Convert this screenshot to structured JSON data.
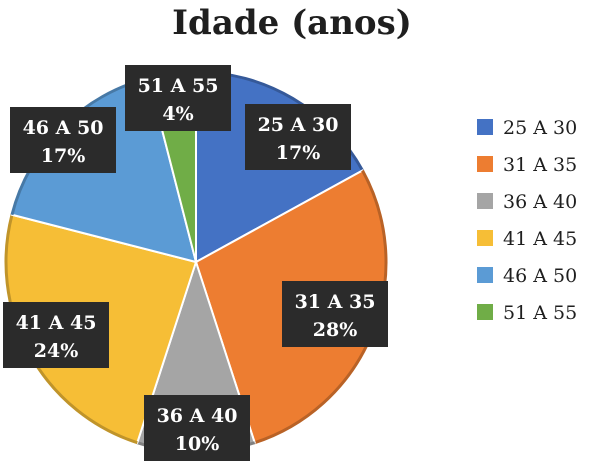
{
  "chart_data": {
    "type": "pie",
    "title": "Idade (anos)",
    "categories": [
      "25 A 30",
      "31 A 35",
      "36 A 40",
      "41 A 45",
      "46 A 50",
      "51 A 55"
    ],
    "values": [
      17,
      28,
      10,
      24,
      17,
      4
    ],
    "value_labels": [
      "17%",
      "28%",
      "10%",
      "24%",
      "17%",
      "4%"
    ],
    "colors": [
      "#4472C4",
      "#ED7D31",
      "#A5A5A5",
      "#F6BE36",
      "#5B9BD5",
      "#70AD47"
    ],
    "legend": {
      "position": "right"
    }
  }
}
